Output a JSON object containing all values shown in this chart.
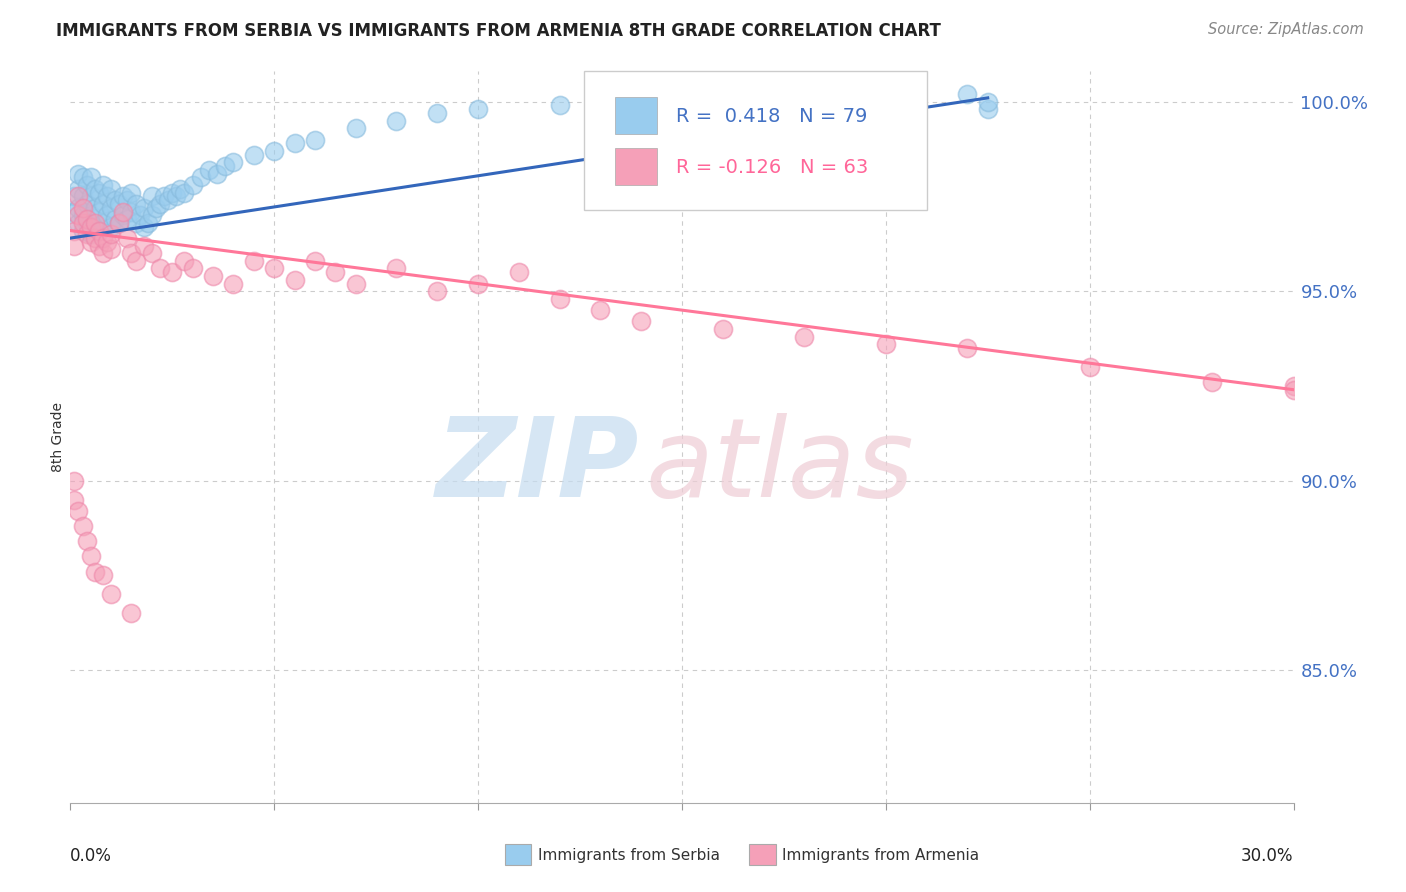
{
  "title": "IMMIGRANTS FROM SERBIA VS IMMIGRANTS FROM ARMENIA 8TH GRADE CORRELATION CHART",
  "source_text": "Source: ZipAtlas.com",
  "ylabel": "8th Grade",
  "xlim": [
    0.0,
    0.3
  ],
  "ylim": [
    0.815,
    1.008
  ],
  "y_ticks": [
    0.85,
    0.9,
    0.95,
    1.0
  ],
  "y_tick_labels": [
    "85.0%",
    "90.0%",
    "95.0%",
    "100.0%"
  ],
  "background_color": "#ffffff",
  "grid_color": "#cccccc",
  "serbia_color": "#99CCEE",
  "armenia_color": "#F5A0B8",
  "serbia_edge_color": "#88BBDD",
  "armenia_edge_color": "#EE88AA",
  "serbia_line_color": "#3366BB",
  "armenia_line_color": "#FF7799",
  "R_serbia": 0.418,
  "N_serbia": 79,
  "R_armenia": -0.126,
  "N_armenia": 63,
  "serbia_line_x": [
    0.0,
    0.225
  ],
  "serbia_line_y": [
    0.964,
    1.001
  ],
  "armenia_line_x": [
    0.0,
    0.3
  ],
  "armenia_line_y": [
    0.966,
    0.924
  ],
  "serbia_x": [
    0.001,
    0.001,
    0.002,
    0.002,
    0.002,
    0.002,
    0.003,
    0.003,
    0.003,
    0.003,
    0.004,
    0.004,
    0.004,
    0.005,
    0.005,
    0.005,
    0.005,
    0.006,
    0.006,
    0.006,
    0.007,
    0.007,
    0.007,
    0.008,
    0.008,
    0.008,
    0.009,
    0.009,
    0.01,
    0.01,
    0.01,
    0.011,
    0.011,
    0.012,
    0.012,
    0.013,
    0.013,
    0.014,
    0.014,
    0.015,
    0.015,
    0.016,
    0.016,
    0.017,
    0.018,
    0.018,
    0.019,
    0.02,
    0.02,
    0.021,
    0.022,
    0.023,
    0.024,
    0.025,
    0.026,
    0.027,
    0.028,
    0.03,
    0.032,
    0.034,
    0.036,
    0.038,
    0.04,
    0.045,
    0.05,
    0.055,
    0.06,
    0.07,
    0.08,
    0.09,
    0.1,
    0.12,
    0.14,
    0.16,
    0.18,
    0.2,
    0.22,
    0.225,
    0.225
  ],
  "serbia_y": [
    0.971,
    0.975,
    0.968,
    0.972,
    0.977,
    0.981,
    0.966,
    0.97,
    0.975,
    0.98,
    0.968,
    0.973,
    0.978,
    0.965,
    0.97,
    0.975,
    0.98,
    0.967,
    0.972,
    0.977,
    0.966,
    0.971,
    0.976,
    0.968,
    0.973,
    0.978,
    0.97,
    0.975,
    0.967,
    0.972,
    0.977,
    0.969,
    0.974,
    0.968,
    0.973,
    0.97,
    0.975,
    0.969,
    0.974,
    0.971,
    0.976,
    0.968,
    0.973,
    0.97,
    0.967,
    0.972,
    0.968,
    0.97,
    0.975,
    0.972,
    0.973,
    0.975,
    0.974,
    0.976,
    0.975,
    0.977,
    0.976,
    0.978,
    0.98,
    0.982,
    0.981,
    0.983,
    0.984,
    0.986,
    0.987,
    0.989,
    0.99,
    0.993,
    0.995,
    0.997,
    0.998,
    0.999,
    1.0,
    1.001,
    1.002,
    1.001,
    1.002,
    0.998,
    1.0
  ],
  "armenia_x": [
    0.001,
    0.001,
    0.002,
    0.002,
    0.003,
    0.003,
    0.004,
    0.004,
    0.005,
    0.005,
    0.006,
    0.006,
    0.007,
    0.007,
    0.008,
    0.008,
    0.009,
    0.01,
    0.01,
    0.012,
    0.013,
    0.014,
    0.015,
    0.016,
    0.018,
    0.02,
    0.022,
    0.025,
    0.028,
    0.03,
    0.035,
    0.04,
    0.045,
    0.05,
    0.055,
    0.06,
    0.065,
    0.07,
    0.08,
    0.09,
    0.1,
    0.11,
    0.12,
    0.13,
    0.14,
    0.16,
    0.18,
    0.2,
    0.22,
    0.25,
    0.28,
    0.3,
    0.3,
    0.001,
    0.001,
    0.002,
    0.003,
    0.004,
    0.005,
    0.006,
    0.008,
    0.01,
    0.015
  ],
  "armenia_y": [
    0.966,
    0.962,
    0.97,
    0.975,
    0.968,
    0.972,
    0.965,
    0.969,
    0.963,
    0.967,
    0.964,
    0.968,
    0.962,
    0.966,
    0.96,
    0.964,
    0.963,
    0.961,
    0.965,
    0.968,
    0.971,
    0.964,
    0.96,
    0.958,
    0.962,
    0.96,
    0.956,
    0.955,
    0.958,
    0.956,
    0.954,
    0.952,
    0.958,
    0.956,
    0.953,
    0.958,
    0.955,
    0.952,
    0.956,
    0.95,
    0.952,
    0.955,
    0.948,
    0.945,
    0.942,
    0.94,
    0.938,
    0.936,
    0.935,
    0.93,
    0.926,
    0.925,
    0.924,
    0.9,
    0.895,
    0.892,
    0.888,
    0.884,
    0.88,
    0.876,
    0.875,
    0.87,
    0.865
  ]
}
